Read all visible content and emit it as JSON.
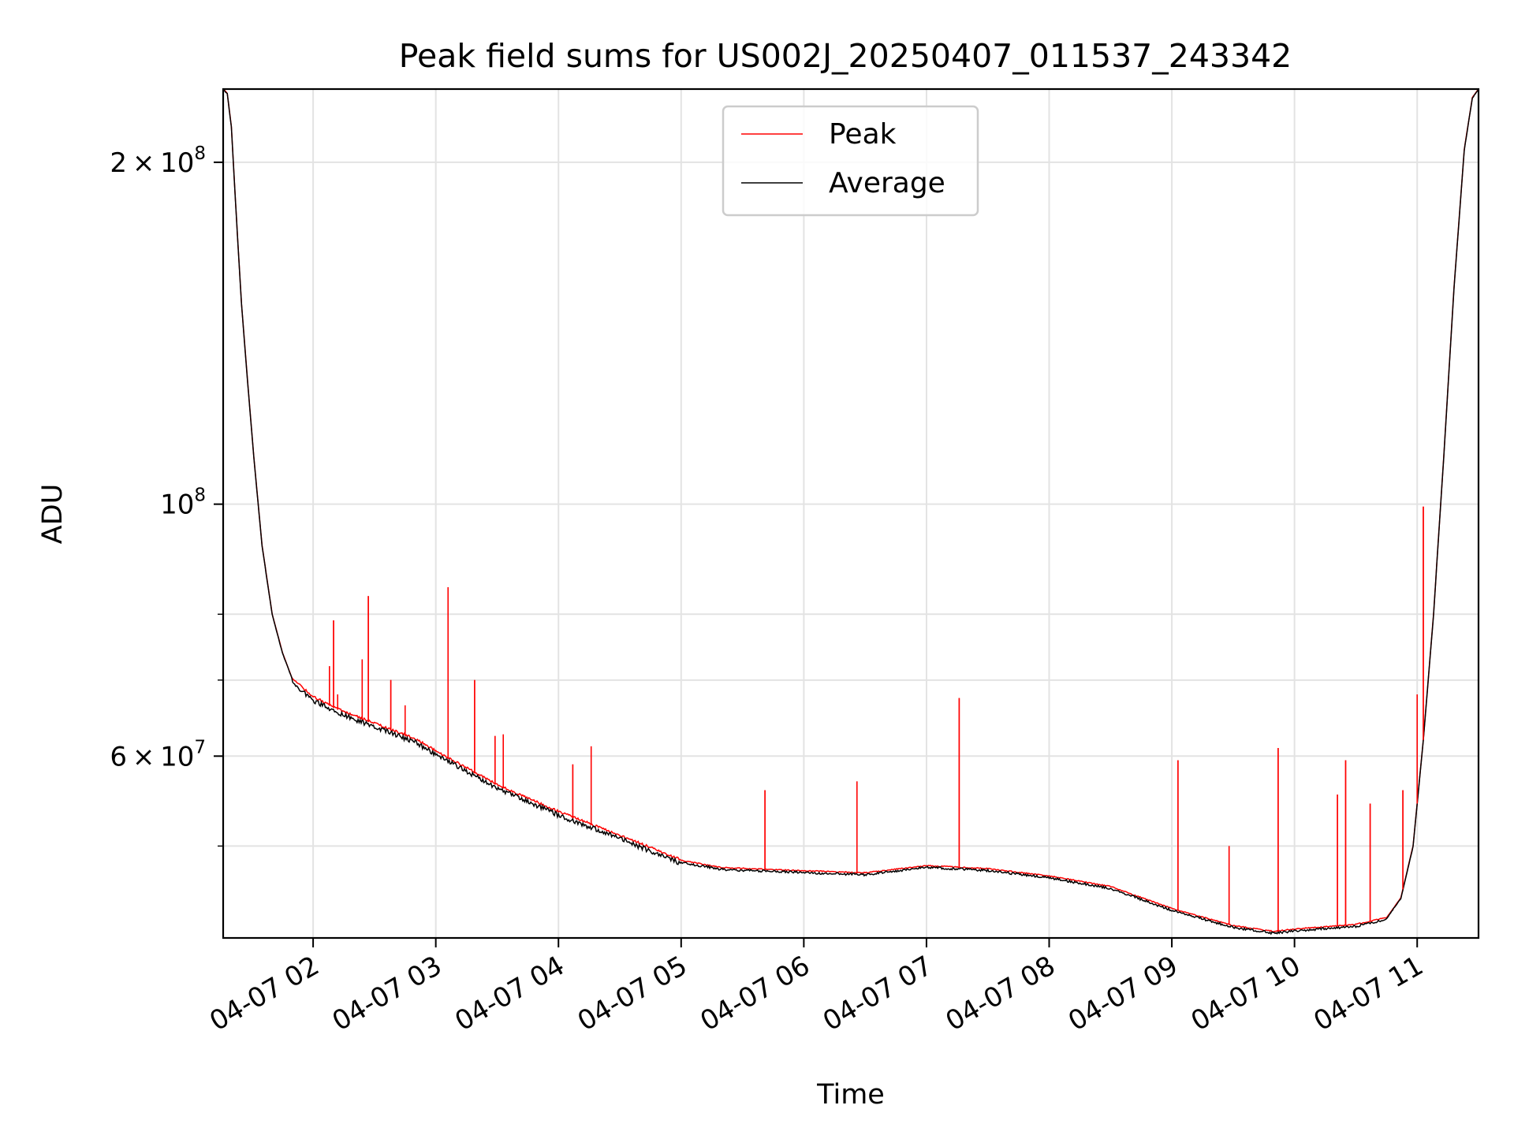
{
  "chart_data": {
    "type": "line",
    "title": "Peak field sums for US002J_20250407_011537_243342",
    "xlabel": "Time",
    "ylabel": "ADU",
    "y_scale": "log",
    "x_tick_labels": [
      "04-07 02",
      "04-07 03",
      "04-07 04",
      "04-07 05",
      "04-07 06",
      "04-07 07",
      "04-07 08",
      "04-07 09",
      "04-07 10",
      "04-07 11"
    ],
    "x_tick_times": [
      "2025-04-07 02:00",
      "2025-04-07 03:00",
      "2025-04-07 04:00",
      "2025-04-07 05:00",
      "2025-04-07 06:00",
      "2025-04-07 07:00",
      "2025-04-07 08:00",
      "2025-04-07 09:00",
      "2025-04-07 10:00",
      "2025-04-07 11:00"
    ],
    "xlim": [
      "2025-04-07 01:16",
      "2025-04-07 11:30"
    ],
    "ylim": [
      41500000,
      232000000
    ],
    "y_major_ticks": [
      {
        "value": 200000000,
        "mantissa": "2",
        "exponent": "8"
      },
      {
        "value": 100000000,
        "mantissa": "",
        "exponent": "8"
      },
      {
        "value": 60000000,
        "mantissa": "6",
        "exponent": "7"
      }
    ],
    "y_minor_ticks": [
      50000000,
      70000000,
      80000000
    ],
    "grid": true,
    "legend_position": "upper center",
    "legend_entries": [
      "Peak",
      "Average"
    ],
    "colors": {
      "Peak": "#ff0000",
      "Average": "#000000"
    },
    "series": [
      {
        "name": "Average",
        "times": [
          "2025-04-07 01:16",
          "2025-04-07 01:18",
          "2025-04-07 01:20",
          "2025-04-07 01:22",
          "2025-04-07 01:25",
          "2025-04-07 01:28",
          "2025-04-07 01:31",
          "2025-04-07 01:35",
          "2025-04-07 01:40",
          "2025-04-07 01:45",
          "2025-04-07 01:50",
          "2025-04-07 02:00",
          "2025-04-07 02:15",
          "2025-04-07 02:30",
          "2025-04-07 02:50",
          "2025-04-07 03:00",
          "2025-04-07 03:30",
          "2025-04-07 04:00",
          "2025-04-07 04:30",
          "2025-04-07 05:00",
          "2025-04-07 05:20",
          "2025-04-07 06:00",
          "2025-04-07 06:30",
          "2025-04-07 07:00",
          "2025-04-07 07:30",
          "2025-04-07 08:00",
          "2025-04-07 08:30",
          "2025-04-07 09:00",
          "2025-04-07 09:30",
          "2025-04-07 09:50",
          "2025-04-07 10:00",
          "2025-04-07 10:30",
          "2025-04-07 10:45",
          "2025-04-07 10:52",
          "2025-04-07 10:58",
          "2025-04-07 11:03",
          "2025-04-07 11:08",
          "2025-04-07 11:13",
          "2025-04-07 11:18",
          "2025-04-07 11:23",
          "2025-04-07 11:27",
          "2025-04-07 11:30"
        ],
        "values": [
          232000000,
          230000000,
          215000000,
          185000000,
          150000000,
          128000000,
          110000000,
          92000000,
          80000000,
          74000000,
          70000000,
          67500000,
          65500000,
          64000000,
          62000000,
          60500000,
          56500000,
          53500000,
          51000000,
          48500000,
          47800000,
          47500000,
          47300000,
          48000000,
          47700000,
          47000000,
          46000000,
          44000000,
          42500000,
          42000000,
          42200000,
          42600000,
          43200000,
          45000000,
          50000000,
          62000000,
          80000000,
          110000000,
          155000000,
          205000000,
          228000000,
          232000000
        ]
      },
      {
        "name": "Peak",
        "spikes": [
          {
            "time": "2025-04-07 02:08",
            "value": 72000000
          },
          {
            "time": "2025-04-07 02:10",
            "value": 79000000
          },
          {
            "time": "2025-04-07 02:12",
            "value": 68000000
          },
          {
            "time": "2025-04-07 02:24",
            "value": 73000000
          },
          {
            "time": "2025-04-07 02:27",
            "value": 83000000
          },
          {
            "time": "2025-04-07 02:38",
            "value": 70000000
          },
          {
            "time": "2025-04-07 02:45",
            "value": 66500000
          },
          {
            "time": "2025-04-07 03:06",
            "value": 84500000
          },
          {
            "time": "2025-04-07 03:19",
            "value": 70000000
          },
          {
            "time": "2025-04-07 03:29",
            "value": 62500000
          },
          {
            "time": "2025-04-07 03:33",
            "value": 62700000
          },
          {
            "time": "2025-04-07 04:07",
            "value": 59000000
          },
          {
            "time": "2025-04-07 04:16",
            "value": 61200000
          },
          {
            "time": "2025-04-07 05:41",
            "value": 56000000
          },
          {
            "time": "2025-04-07 06:26",
            "value": 57000000
          },
          {
            "time": "2025-04-07 07:16",
            "value": 67500000
          },
          {
            "time": "2025-04-07 09:03",
            "value": 59500000
          },
          {
            "time": "2025-04-07 09:28",
            "value": 50000000
          },
          {
            "time": "2025-04-07 09:52",
            "value": 61000000
          },
          {
            "time": "2025-04-07 10:21",
            "value": 55500000
          },
          {
            "time": "2025-04-07 10:25",
            "value": 59500000
          },
          {
            "time": "2025-04-07 10:37",
            "value": 54500000
          },
          {
            "time": "2025-04-07 10:53",
            "value": 56000000
          },
          {
            "time": "2025-04-07 11:00",
            "value": 68000000
          },
          {
            "time": "2025-04-07 11:03",
            "value": 99500000
          }
        ]
      }
    ]
  }
}
